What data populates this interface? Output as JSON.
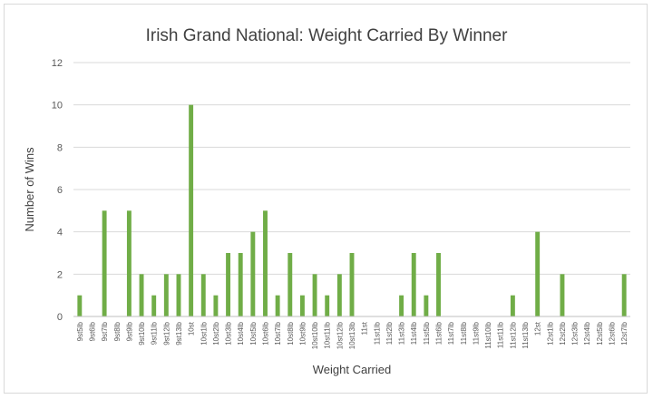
{
  "chart_data": {
    "type": "bar",
    "title": "Irish Grand National: Weight Carried By Winner",
    "xlabel": "Weight Carried",
    "ylabel": "Number of Wins",
    "ylim": [
      0,
      12
    ],
    "yticks": [
      0,
      2,
      4,
      6,
      8,
      10,
      12
    ],
    "grid": true,
    "legend": "none",
    "bar_color": "#70ad47",
    "categories": [
      "9st5lb",
      "9st6lb",
      "9st7lb",
      "9st8lb",
      "9st9lb",
      "9st10lb",
      "9st11lb",
      "9st12lb",
      "9st13lb",
      "10st",
      "10st1lb",
      "10st2lb",
      "10st3lb",
      "10st4lb",
      "10st5lb",
      "10st6lb",
      "10st7lb",
      "10st8lb",
      "10st9lb",
      "10st10lb",
      "10st11lb",
      "10st12lb",
      "10st13lb",
      "11st",
      "11st1lb",
      "11st2lb",
      "11st3lb",
      "11st4lb",
      "11st5lb",
      "11st6lb",
      "11st7lb",
      "11st8lb",
      "11st9lb",
      "11st10lb",
      "11st11lb",
      "11st12lb",
      "11st13lb",
      "12st",
      "12st1lb",
      "12st2lb",
      "12st3lb",
      "12st4lb",
      "12st5lb",
      "12st6lb",
      "12st7lb"
    ],
    "values": [
      1,
      0,
      5,
      0,
      5,
      2,
      1,
      2,
      2,
      10,
      2,
      1,
      3,
      3,
      4,
      5,
      1,
      3,
      1,
      2,
      1,
      2,
      3,
      0,
      0,
      0,
      1,
      3,
      1,
      3,
      0,
      0,
      0,
      0,
      0,
      1,
      0,
      4,
      0,
      2,
      0,
      0,
      0,
      0,
      2
    ]
  }
}
